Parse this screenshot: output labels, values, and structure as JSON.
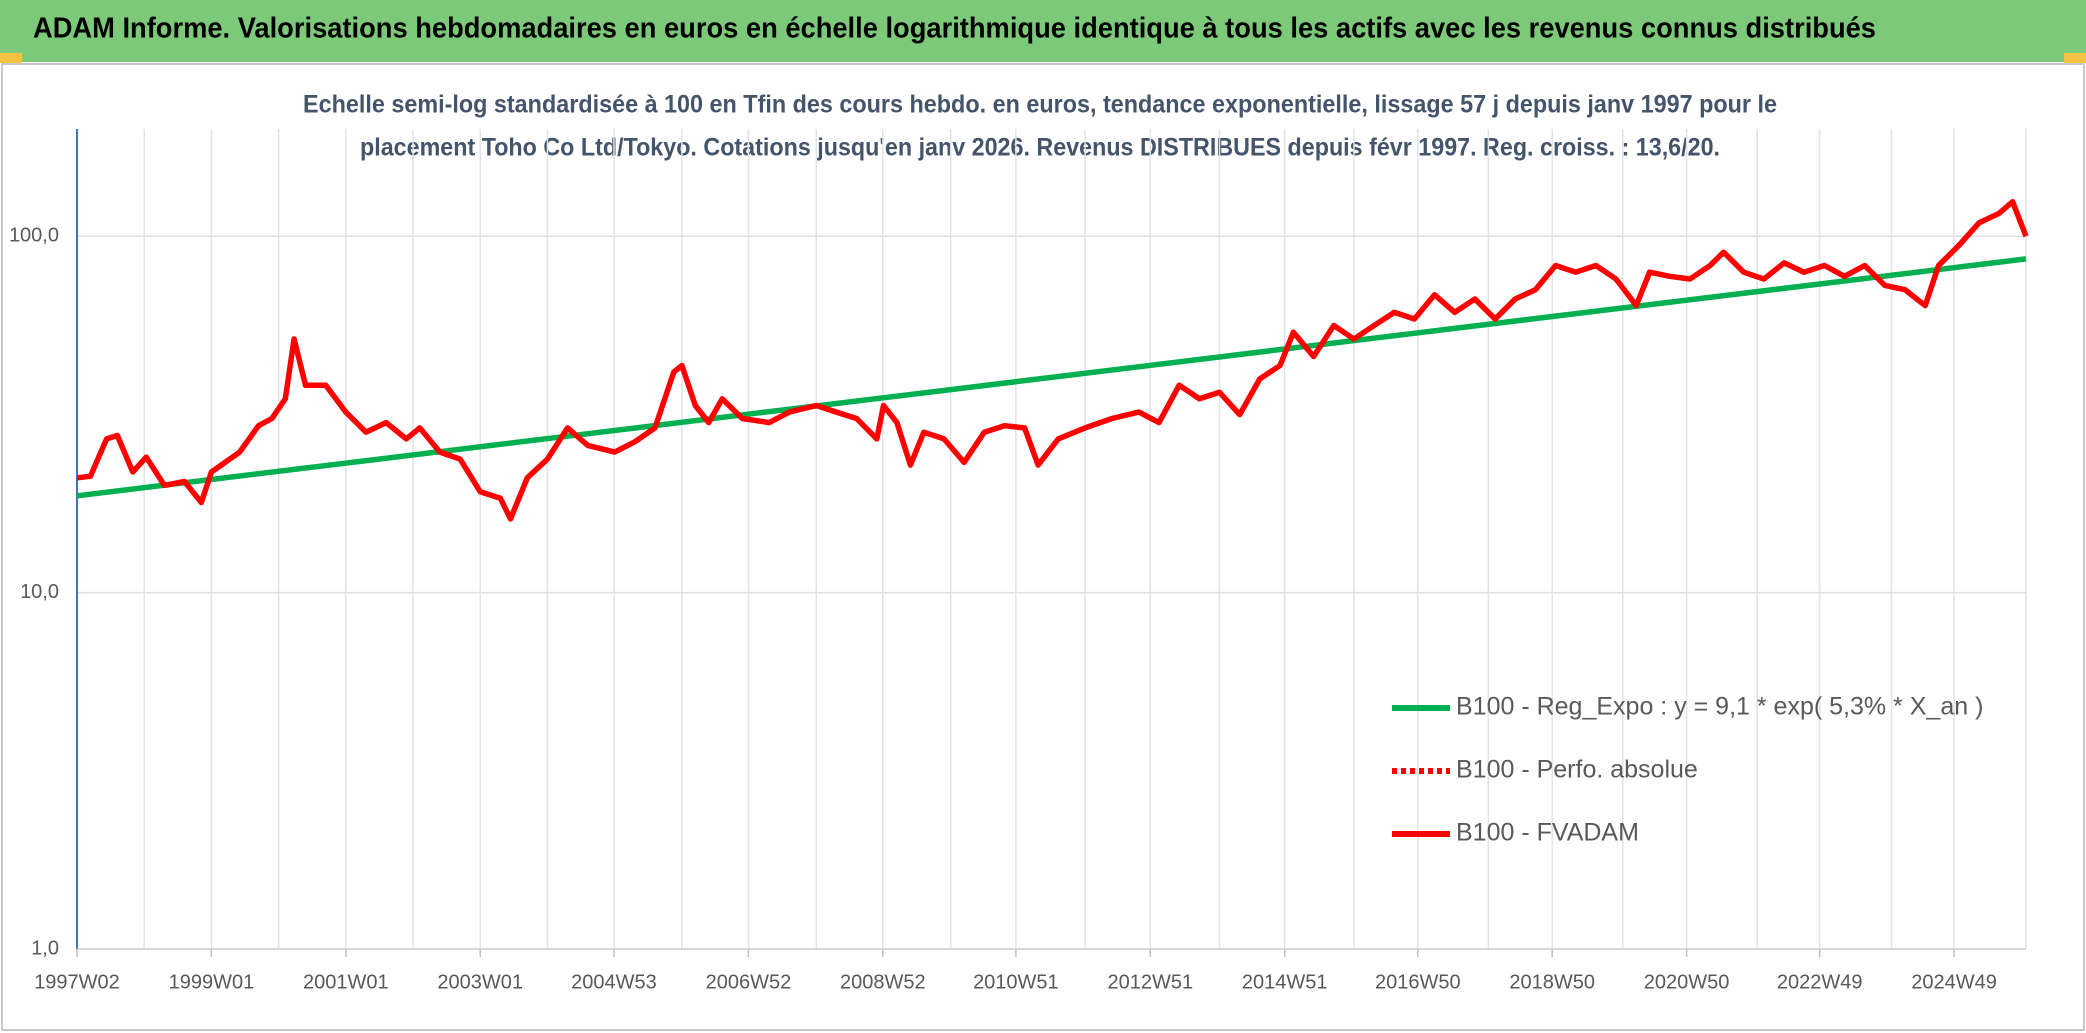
{
  "chart_data": {
    "type": "line",
    "title": "ADAM Informe. Valorisations hebdomadaires en euros en échelle logarithmique identique à tous les actifs avec les revenus connus distribués",
    "subtitle": [
      "Echelle semi-log standardisée à 100 en Tfin des cours hebdo. en euros, tendance exponentielle, lissage 57 j depuis janv 1997 pour le",
      "placement Toho Co Ltd/Tokyo. Cotations jusqu'en janv 2026. Revenus DISTRIBUES depuis févr 1997. Reg. croiss. : 13,6/20."
    ],
    "log_y": true,
    "grid": true,
    "legend": "lower right",
    "xlim": [
      1997.0,
      2026.0
    ],
    "ylim": [
      1,
      200
    ],
    "yticks": [
      {
        "value": 1,
        "label": "1,0"
      },
      {
        "value": 10,
        "label": "10,0"
      },
      {
        "value": 100,
        "label": "100,0"
      }
    ],
    "xticks": [
      {
        "value": 1997.0,
        "label": "1997W02"
      },
      {
        "value": 1999.0,
        "label": "1999W01"
      },
      {
        "value": 2001.0,
        "label": "2001W01"
      },
      {
        "value": 2003.0,
        "label": "2003W01"
      },
      {
        "value": 2004.99,
        "label": "2004W53"
      },
      {
        "value": 2006.99,
        "label": "2006W52"
      },
      {
        "value": 2008.99,
        "label": "2008W52"
      },
      {
        "value": 2010.97,
        "label": "2010W51"
      },
      {
        "value": 2012.97,
        "label": "2012W51"
      },
      {
        "value": 2014.97,
        "label": "2014W51"
      },
      {
        "value": 2016.95,
        "label": "2016W50"
      },
      {
        "value": 2018.95,
        "label": "2018W50"
      },
      {
        "value": 2020.95,
        "label": "2020W50"
      },
      {
        "value": 2022.93,
        "label": "2022W49"
      },
      {
        "value": 2024.93,
        "label": "2024W49"
      }
    ],
    "xgrid": [
      1998,
      2000,
      2002,
      2004,
      2006,
      2008,
      2010,
      2012,
      2014,
      2016,
      2018,
      2020,
      2022,
      2024,
      2026
    ],
    "x": [
      1997.0,
      1997.2,
      1997.44,
      1997.6,
      1997.83,
      1998.03,
      1998.3,
      1998.6,
      1998.85,
      1999.0,
      1999.42,
      1999.7,
      1999.9,
      2000.1,
      2000.23,
      2000.4,
      2000.7,
      2001.0,
      2001.3,
      2001.6,
      2001.9,
      2002.1,
      2002.4,
      2002.7,
      2003.0,
      2003.3,
      2003.45,
      2003.7,
      2004.0,
      2004.3,
      2004.6,
      2005.0,
      2005.3,
      2005.6,
      2005.88,
      2006.0,
      2006.2,
      2006.4,
      2006.6,
      2006.9,
      2007.3,
      2007.6,
      2008.0,
      2008.3,
      2008.6,
      2008.9,
      2009.0,
      2009.2,
      2009.4,
      2009.6,
      2009.9,
      2010.2,
      2010.5,
      2010.8,
      2011.1,
      2011.3,
      2011.6,
      2012.0,
      2012.4,
      2012.8,
      2013.1,
      2013.4,
      2013.7,
      2014.0,
      2014.3,
      2014.6,
      2014.9,
      2015.1,
      2015.4,
      2015.7,
      2016.0,
      2016.3,
      2016.6,
      2016.9,
      2017.2,
      2017.5,
      2017.8,
      2018.1,
      2018.4,
      2018.7,
      2019.0,
      2019.3,
      2019.6,
      2019.9,
      2020.2,
      2020.4,
      2020.7,
      2021.0,
      2021.3,
      2021.5,
      2021.8,
      2022.1,
      2022.4,
      2022.7,
      2023.0,
      2023.3,
      2023.6,
      2023.9,
      2024.2,
      2024.5,
      2024.7,
      2025.0,
      2025.3,
      2025.6,
      2025.8,
      2026.0
    ],
    "series": [
      {
        "name": "B100 - Reg_Expo : y = 9,1 * exp( 5,3% *  X_an )",
        "color": "#00b050",
        "style": "solid",
        "x": [
          1997.0,
          2026.0
        ],
        "values": [
          18.7,
          86.4
        ]
      },
      {
        "name": "B100 - Perfo. absolue",
        "color": "#ff0000",
        "style": "dotted",
        "values": [
          21.0,
          21.2,
          27.0,
          27.6,
          21.8,
          24.0,
          20.0,
          20.5,
          17.9,
          21.8,
          24.8,
          29.4,
          30.8,
          35.0,
          51.5,
          38.2,
          38.2,
          32.1,
          28.2,
          30.0,
          27.0,
          29.0,
          24.8,
          23.7,
          19.2,
          18.4,
          16.1,
          21.0,
          23.7,
          29.0,
          25.9,
          24.8,
          26.5,
          29.0,
          41.6,
          43.4,
          33.5,
          30.0,
          35.0,
          30.8,
          30.0,
          32.1,
          33.5,
          32.1,
          30.8,
          27.0,
          33.5,
          30.0,
          22.8,
          28.2,
          27.0,
          23.2,
          28.2,
          29.4,
          29.0,
          22.8,
          27.0,
          29.0,
          30.8,
          32.1,
          30.0,
          38.2,
          35.0,
          36.5,
          31.6,
          39.8,
          43.4,
          53.8,
          46.0,
          56.2,
          51.5,
          56.2,
          61.2,
          58.6,
          68.5,
          61.2,
          66.7,
          58.6,
          66.7,
          70.8,
          82.8,
          79.3,
          82.8,
          75.9,
          63.9,
          79.3,
          77.2,
          75.9,
          82.8,
          90.2,
          79.3,
          75.9,
          84.2,
          79.3,
          82.8,
          77.2,
          82.8,
          72.8,
          70.8,
          63.9,
          82.8,
          94.2,
          109,
          116,
          125,
          100
        ]
      },
      {
        "name": "B100 - FVADAM",
        "color": "#ff0000",
        "style": "solid",
        "values": [
          21.0,
          21.2,
          27.0,
          27.6,
          21.8,
          24.0,
          20.0,
          20.5,
          17.9,
          21.8,
          24.8,
          29.4,
          30.8,
          35.0,
          51.5,
          38.2,
          38.2,
          32.1,
          28.2,
          30.0,
          27.0,
          29.0,
          24.8,
          23.7,
          19.2,
          18.4,
          16.1,
          21.0,
          23.7,
          29.0,
          25.9,
          24.8,
          26.5,
          29.0,
          41.6,
          43.4,
          33.5,
          30.0,
          35.0,
          30.8,
          30.0,
          32.1,
          33.5,
          32.1,
          30.8,
          27.0,
          33.5,
          30.0,
          22.8,
          28.2,
          27.0,
          23.2,
          28.2,
          29.4,
          29.0,
          22.8,
          27.0,
          29.0,
          30.8,
          32.1,
          30.0,
          38.2,
          35.0,
          36.5,
          31.6,
          39.8,
          43.4,
          53.8,
          46.0,
          56.2,
          51.5,
          56.2,
          61.2,
          58.6,
          68.5,
          61.2,
          66.7,
          58.6,
          66.7,
          70.8,
          82.8,
          79.3,
          82.8,
          75.9,
          63.9,
          79.3,
          77.2,
          75.9,
          82.8,
          90.2,
          79.3,
          75.9,
          84.2,
          79.3,
          82.8,
          77.2,
          82.8,
          72.8,
          70.8,
          63.9,
          82.8,
          94.2,
          109,
          116,
          125,
          100
        ]
      }
    ]
  }
}
